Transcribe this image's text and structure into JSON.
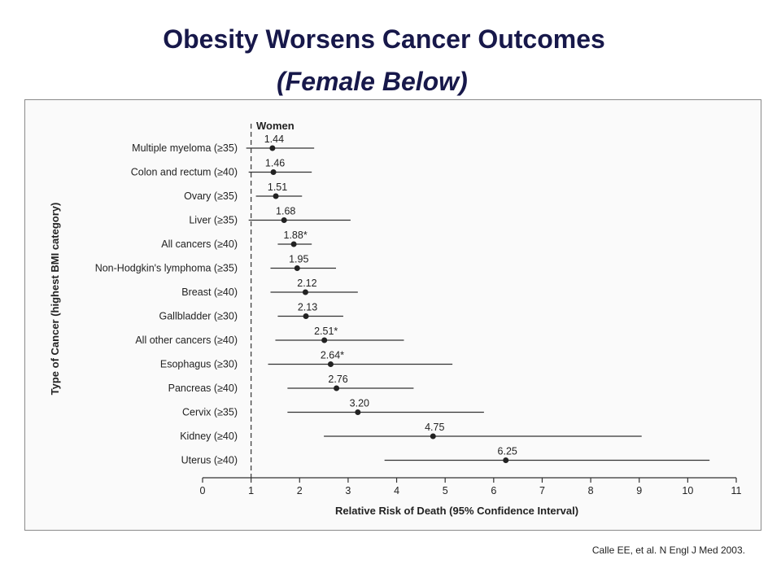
{
  "slide": {
    "title": "Obesity Worsens Cancer Outcomes",
    "subtitle": "(Female Below)",
    "citation": "Calle EE, et al. N Engl J Med 2003."
  },
  "chart_data": {
    "type": "forest",
    "panel_label": "Women",
    "xlabel": "Relative Risk of Death (95% Confidence Interval)",
    "ylabel": "Type of Cancer (highest BMI category)",
    "xlim": [
      0,
      11
    ],
    "xticks": [
      0,
      1,
      2,
      3,
      4,
      5,
      6,
      7,
      8,
      9,
      10,
      11
    ],
    "reference_line": 1,
    "rows": [
      {
        "label": "Multiple myeloma (≥35)",
        "value": 1.44,
        "value_label": "1.44",
        "ci": [
          0.9,
          2.3
        ]
      },
      {
        "label": "Colon and rectum (≥40)",
        "value": 1.46,
        "value_label": "1.46",
        "ci": [
          0.95,
          2.25
        ]
      },
      {
        "label": "Ovary (≥35)",
        "value": 1.51,
        "value_label": "1.51",
        "ci": [
          1.1,
          2.05
        ]
      },
      {
        "label": "Liver (≥35)",
        "value": 1.68,
        "value_label": "1.68",
        "ci": [
          0.95,
          3.05
        ]
      },
      {
        "label": "All cancers (≥40)",
        "value": 1.88,
        "value_label": "1.88*",
        "ci": [
          1.55,
          2.25
        ]
      },
      {
        "label": "Non-Hodgkin's lymphoma (≥35)",
        "value": 1.95,
        "value_label": "1.95",
        "ci": [
          1.4,
          2.75
        ]
      },
      {
        "label": "Breast (≥40)",
        "value": 2.12,
        "value_label": "2.12",
        "ci": [
          1.4,
          3.2
        ]
      },
      {
        "label": "Gallbladder (≥30)",
        "value": 2.13,
        "value_label": "2.13",
        "ci": [
          1.55,
          2.9
        ]
      },
      {
        "label": "All other cancers (≥40)",
        "value": 2.51,
        "value_label": "2.51*",
        "ci": [
          1.5,
          4.15
        ]
      },
      {
        "label": "Esophagus (≥30)",
        "value": 2.64,
        "value_label": "2.64*",
        "ci": [
          1.35,
          5.15
        ]
      },
      {
        "label": "Pancreas (≥40)",
        "value": 2.76,
        "value_label": "2.76",
        "ci": [
          1.75,
          4.35
        ]
      },
      {
        "label": "Cervix (≥35)",
        "value": 3.2,
        "value_label": "3.20",
        "ci": [
          1.75,
          5.8
        ]
      },
      {
        "label": "Kidney (≥40)",
        "value": 4.75,
        "value_label": "4.75",
        "ci": [
          2.5,
          9.05
        ]
      },
      {
        "label": "Uterus (≥40)",
        "value": 6.25,
        "value_label": "6.25",
        "ci": [
          3.75,
          10.45
        ]
      }
    ]
  }
}
